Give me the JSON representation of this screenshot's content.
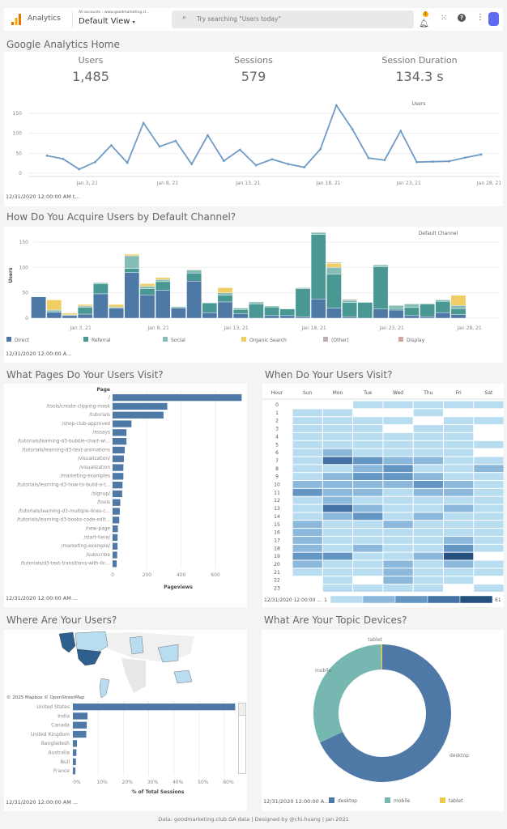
{
  "header": {
    "app_name": "Analytics",
    "breadcrumb": "All accounts › www.goodmarketing.cl...",
    "view": "Default View",
    "search_placeholder": "Try searching \"Users today\"",
    "notification_count": "1",
    "icons": [
      "analytics-logo-icon",
      "search-icon",
      "bell-icon",
      "apps-grid-icon",
      "help-icon",
      "more-vert-icon",
      "account-avatar-icon"
    ]
  },
  "page_title": "Google Analytics Home",
  "kpis": [
    {
      "label": "Users",
      "value": "1,485"
    },
    {
      "label": "Sessions",
      "value": "579"
    },
    {
      "label": "Session Duration",
      "value": "134.3 s"
    }
  ],
  "date_range_note": "12/31/2020 12:00:00 AM t...",
  "date_range_short": "12/31/2020 12:00:00 A...",
  "date_range_mid": "12/31/2020 12:00:00 AM ...",
  "date_range_heat": "12/31/2020 12:00:00 ...",
  "sections": {
    "channel": "How Do You Acquire Users by Default Channel?",
    "pages": "What Pages Do Your Users Visit?",
    "when": "When Do Your Users Visit?",
    "where": "Where Are Your Users?",
    "devices": "What Are Your Topic Devices?"
  },
  "map_attribution": "© 2025 Mapbox © OpenStreetMap",
  "footer": "Data: goodmarketing.club GA data | Designed by @chi.huang | Jan 2021",
  "chart_data": [
    {
      "id": "users_line",
      "type": "line",
      "legend_title": "Users",
      "x": [
        "Jan 1, 21",
        "Jan 2, 21",
        "Jan 3, 21",
        "Jan 4, 21",
        "Jan 5, 21",
        "Jan 6, 21",
        "Jan 7, 21",
        "Jan 8, 21",
        "Jan 9, 21",
        "Jan 10, 21",
        "Jan 11, 21",
        "Jan 12, 21",
        "Jan 13, 21",
        "Jan 14, 21",
        "Jan 15, 21",
        "Jan 16, 21",
        "Jan 17, 21",
        "Jan 18, 21",
        "Jan 19, 21",
        "Jan 20, 21",
        "Jan 21, 21",
        "Jan 22, 21",
        "Jan 23, 21",
        "Jan 24, 21",
        "Jan 25, 21",
        "Jan 26, 21",
        "Jan 27, 21",
        "Jan 28, 21"
      ],
      "values": [
        44,
        36,
        10,
        28,
        70,
        26,
        126,
        67,
        81,
        23,
        95,
        31,
        59,
        20,
        35,
        23,
        15,
        60,
        170,
        110,
        38,
        33,
        106,
        28,
        29,
        30,
        39,
        47
      ],
      "xticks": [
        "Jan 3, 21",
        "Jan 8, 21",
        "Jan 13, 21",
        "Jan 18, 21",
        "Jan 23, 21",
        "Jan 28, 21"
      ],
      "yticks": [
        0,
        50,
        100,
        150
      ],
      "ylim": [
        0,
        175
      ],
      "color": "#6f9bc6",
      "grid": true
    },
    {
      "id": "channel_stacked",
      "type": "bar",
      "stacked": true,
      "ylabel": "Users",
      "legend_title": "Default Channel",
      "legend_position": "bottom",
      "xticks": [
        "Jan 3, 21",
        "Jan 8, 21",
        "Jan 13, 21",
        "Jan 18, 21",
        "Jan 23, 21",
        "Jan 28, 21"
      ],
      "yticks": [
        0,
        50,
        100,
        150
      ],
      "ylim": [
        0,
        175
      ],
      "series": [
        {
          "name": "Direct",
          "color": "#4e79a7",
          "values": [
            42,
            12,
            5,
            8,
            48,
            20,
            90,
            46,
            55,
            20,
            73,
            11,
            32,
            9,
            0,
            5,
            5,
            3,
            38,
            20,
            3,
            0,
            18,
            16,
            5,
            3,
            11,
            7
          ]
        },
        {
          "name": "Referral",
          "color": "#499894",
          "values": [
            0,
            0,
            0,
            13,
            20,
            0,
            8,
            12,
            17,
            2,
            16,
            19,
            13,
            8,
            28,
            17,
            13,
            55,
            127,
            67,
            28,
            31,
            83,
            3,
            16,
            25,
            22,
            12
          ]
        },
        {
          "name": "Social",
          "color": "#86bcb6",
          "values": [
            0,
            4,
            2,
            3,
            2,
            2,
            25,
            5,
            4,
            1,
            6,
            0,
            5,
            3,
            4,
            2,
            1,
            2,
            4,
            13,
            4,
            1,
            4,
            6,
            7,
            1,
            3,
            6
          ]
        },
        {
          "name": "Organic Search",
          "color": "#f1ce63",
          "values": [
            0,
            20,
            3,
            3,
            0,
            5,
            3,
            5,
            4,
            0,
            0,
            0,
            10,
            0,
            0,
            0,
            0,
            0,
            0,
            8,
            0,
            0,
            0,
            0,
            0,
            0,
            0,
            20
          ]
        },
        {
          "name": "(Other)",
          "color": "#bab0ac",
          "values": [
            0,
            0,
            0,
            0,
            0,
            0,
            0,
            0,
            0,
            0,
            0,
            0,
            0,
            0,
            0,
            0,
            0,
            0,
            0,
            2,
            2,
            0,
            0,
            0,
            0,
            0,
            0,
            0
          ]
        },
        {
          "name": "Display",
          "color": "#d4a6a0",
          "values": [
            0,
            0,
            0,
            0,
            0,
            0,
            0,
            0,
            0,
            0,
            0,
            0,
            0,
            0,
            0,
            0,
            0,
            0,
            0,
            0,
            1,
            0,
            0,
            0,
            0,
            0,
            0,
            0
          ]
        }
      ]
    },
    {
      "id": "pages_bar",
      "type": "bar",
      "orientation": "horizontal",
      "header": "Page",
      "xlabel": "Pageviews",
      "xticks": [
        0,
        200,
        400,
        600
      ],
      "color": "#4e79a7",
      "categories": [
        "/",
        "/tools/create-clipping-mask",
        "/tutorials",
        "/shop-club-approved",
        "/essays",
        "/tutorials/learning-d3-bubble-chart-wi...",
        "/tutorials/learning-d3-text-animations",
        "/visualization/",
        "/visualization",
        "/marketing-examples",
        "/tutorials/learning-d3-how-to-build-a-t...",
        "/signup/",
        "/tools",
        "/tutorials/learning-d3-multiple-lines-c...",
        "/tutorials/learning-d3-books-code-edit...",
        "/new-page",
        "/start-here/",
        "/marketing-example/",
        "/subscribe",
        "/tutorials/d3-text-transitions-with-lin..."
      ],
      "values": [
        753,
        319,
        297,
        110,
        81,
        81,
        71,
        66,
        63,
        63,
        58,
        56,
        45,
        42,
        39,
        31,
        29,
        29,
        27,
        24
      ]
    },
    {
      "id": "hour_heatmap",
      "type": "heatmap",
      "row_header": "Hour",
      "columns": [
        "Sun",
        "Mon",
        "Tue",
        "Wed",
        "Thu",
        "Fri",
        "Sat"
      ],
      "rows": [
        "0",
        "1",
        "2",
        "3",
        "4",
        "5",
        "6",
        "7",
        "8",
        "9",
        "10",
        "11",
        "12",
        "13",
        "14",
        "15",
        "16",
        "17",
        "18",
        "19",
        "20",
        "21",
        "22",
        "23"
      ],
      "scale_min": "1",
      "scale_max": "61",
      "colors": [
        "#ffffff",
        "#b9ddf0",
        "#8cb9db",
        "#6496c3",
        "#4472a5",
        "#26517f"
      ],
      "levels": [
        [
          0,
          0,
          1,
          1,
          1,
          1,
          1
        ],
        [
          1,
          1,
          0,
          0,
          1,
          0,
          0
        ],
        [
          1,
          1,
          1,
          1,
          0,
          1,
          1
        ],
        [
          1,
          1,
          1,
          0,
          1,
          1,
          0
        ],
        [
          1,
          1,
          1,
          1,
          1,
          1,
          0
        ],
        [
          1,
          1,
          1,
          1,
          1,
          1,
          1
        ],
        [
          1,
          2,
          1,
          1,
          1,
          1,
          0
        ],
        [
          1,
          4,
          3,
          2,
          2,
          1,
          1
        ],
        [
          1,
          1,
          2,
          3,
          1,
          1,
          2
        ],
        [
          1,
          2,
          3,
          3,
          2,
          1,
          1
        ],
        [
          2,
          2,
          2,
          2,
          3,
          2,
          1
        ],
        [
          3,
          2,
          2,
          1,
          2,
          2,
          1
        ],
        [
          1,
          2,
          1,
          1,
          1,
          1,
          1
        ],
        [
          1,
          4,
          2,
          1,
          1,
          2,
          1
        ],
        [
          1,
          2,
          3,
          1,
          2,
          1,
          1
        ],
        [
          2,
          1,
          1,
          2,
          1,
          1,
          1
        ],
        [
          2,
          1,
          1,
          1,
          1,
          1,
          1
        ],
        [
          2,
          1,
          1,
          1,
          1,
          2,
          1
        ],
        [
          2,
          1,
          2,
          1,
          1,
          3,
          1
        ],
        [
          3,
          3,
          1,
          1,
          2,
          5,
          0
        ],
        [
          2,
          1,
          1,
          2,
          1,
          2,
          1
        ],
        [
          1,
          1,
          1,
          2,
          1,
          1,
          1
        ],
        [
          0,
          1,
          0,
          2,
          1,
          1,
          0
        ],
        [
          0,
          1,
          1,
          1,
          1,
          0,
          1
        ]
      ]
    },
    {
      "id": "country_bar",
      "type": "bar",
      "orientation": "horizontal",
      "xlabel": "% of Total Sessions",
      "xticks": [
        "0%",
        "10%",
        "20%",
        "30%",
        "40%",
        "50%",
        "60%"
      ],
      "color": "#4e79a7",
      "categories": [
        "United States",
        "India",
        "Canada",
        "United Kingdom",
        "Bangladesh",
        "Australia",
        "Null",
        "France"
      ],
      "values": [
        64.3,
        5.8,
        5.5,
        5.3,
        1.6,
        1.4,
        1.2,
        1.0
      ]
    },
    {
      "id": "devices_donut",
      "type": "pie",
      "donut": true,
      "legend_position": "bottom",
      "categories": [
        "desktop",
        "mobile",
        "tablet"
      ],
      "values": [
        68.0,
        31.7,
        0.3
      ],
      "colors": [
        "#4e79a7",
        "#76b7b2",
        "#edc948"
      ]
    }
  ]
}
